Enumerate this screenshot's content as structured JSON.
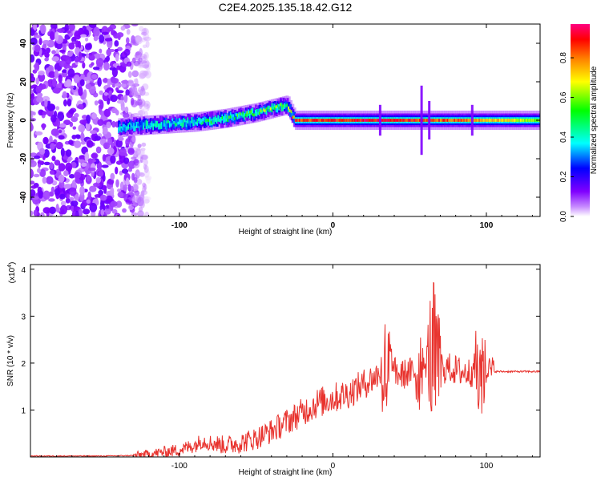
{
  "title": "C2E4.2025.135.18.42.G12",
  "chart_data": [
    {
      "type": "heatmap",
      "xlabel": "Height of straight line (km)",
      "ylabel": "Frequency (Hz)",
      "xlim": [
        -197,
        135
      ],
      "ylim": [
        -50,
        50
      ],
      "xticks": [
        -100,
        0,
        100
      ],
      "yticks": [
        -40,
        -20,
        0,
        20,
        40
      ],
      "colorbar": {
        "label": "Normalized spectral amplitude",
        "range": [
          0,
          0.97
        ],
        "ticks": [
          "0.0",
          "0.2",
          "0.4",
          "0.6",
          "0.8"
        ],
        "colors": [
          "#ffffff",
          "#c88cff",
          "#8000ff",
          "#0000ff",
          "#00ffff",
          "#00ff00",
          "#ffff00",
          "#ff8000",
          "#ff0000",
          "#ff0080"
        ]
      },
      "ridge": {
        "x": [
          -150,
          -130,
          -110,
          -90,
          -70,
          -50,
          -40,
          -30,
          -25,
          0,
          30,
          60,
          90,
          120,
          135
        ],
        "center_hz": [
          -5,
          -3,
          -2,
          -1,
          1,
          4,
          6,
          8,
          0,
          0,
          0,
          0,
          0,
          0,
          0
        ],
        "intensity": [
          0.3,
          0.35,
          0.4,
          0.45,
          0.5,
          0.55,
          0.6,
          0.55,
          0.9,
          0.92,
          0.95,
          0.9,
          0.85,
          0.7,
          0.6
        ]
      }
    },
    {
      "type": "line",
      "xlabel": "Height of straight line (km)",
      "ylabel": "SNR (10 * v/v)",
      "yscale_label": "(x10",
      "yscale_exp": "4",
      "xlim": [
        -197,
        135
      ],
      "ylim": [
        0,
        4.1
      ],
      "xticks": [
        -100,
        0,
        100
      ],
      "yticks": [
        1,
        2,
        3,
        4
      ],
      "color": "#e8332e",
      "series": [
        {
          "x": [
            -197,
            -150,
            -130,
            -120,
            -100,
            -90,
            -85,
            -80,
            -70,
            -60,
            -50,
            -40,
            -30,
            -20,
            -10,
            0,
            10,
            20,
            25,
            30,
            35,
            40,
            45,
            50,
            55,
            60,
            63,
            65,
            67,
            70,
            75,
            80,
            85,
            88,
            90,
            93,
            95,
            98,
            100,
            105,
            120,
            135
          ],
          "y": [
            0.02,
            0.02,
            0.03,
            0.06,
            0.15,
            0.25,
            0.35,
            0.3,
            0.25,
            0.3,
            0.4,
            0.55,
            0.75,
            0.95,
            1.15,
            1.25,
            1.35,
            1.55,
            1.65,
            1.75,
            1.8,
            1.8,
            1.75,
            1.8,
            1.85,
            1.9,
            2.2,
            2.1,
            1.9,
            1.85,
            1.9,
            1.85,
            1.8,
            1.8,
            1.8,
            1.85,
            1.9,
            1.85,
            1.85,
            1.82,
            1.82,
            1.82
          ]
        }
      ],
      "bursts": [
        {
          "x0": 30,
          "x1": 40,
          "amp": 1.35
        },
        {
          "x0": 52,
          "x1": 60,
          "amp": 0.9
        },
        {
          "x0": 60,
          "x1": 72,
          "amp": 1.8
        },
        {
          "x0": 91,
          "x1": 101,
          "amp": 1.4
        }
      ]
    }
  ]
}
